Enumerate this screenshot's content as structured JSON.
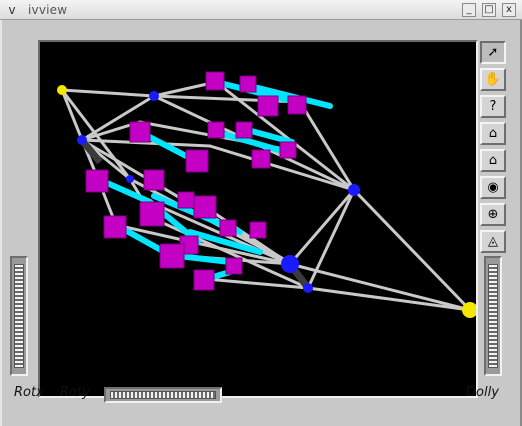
{
  "window": {
    "title": "ivview",
    "menu_glyph": "v",
    "minimize_glyph": "_",
    "maximize_glyph": "□",
    "close_glyph": "x"
  },
  "toolbar": {
    "tools": [
      {
        "name": "select-arrow-icon",
        "glyph": "➚"
      },
      {
        "name": "view-hand-icon",
        "glyph": "✋"
      },
      {
        "name": "help-icon",
        "glyph": "?"
      },
      {
        "name": "home-icon",
        "glyph": "⌂"
      },
      {
        "name": "set-home-icon",
        "glyph": "⌂"
      },
      {
        "name": "view-all-eye-icon",
        "glyph": "◉"
      },
      {
        "name": "seek-target-icon",
        "glyph": "⊕"
      },
      {
        "name": "projection-camera-icon",
        "glyph": "◬"
      }
    ]
  },
  "bottom": {
    "rotx_label": "Rotx",
    "roty_label": "Roty",
    "dolly_label": "Dolly"
  },
  "colors": {
    "viewer_bg": "#000000",
    "strut": "#c8c8c8",
    "rod_cyan": "#00e5ff",
    "cube_magenta": "#cc00cc",
    "node_blue": "#1a1aff",
    "node_yellow": "#f5e600"
  }
}
